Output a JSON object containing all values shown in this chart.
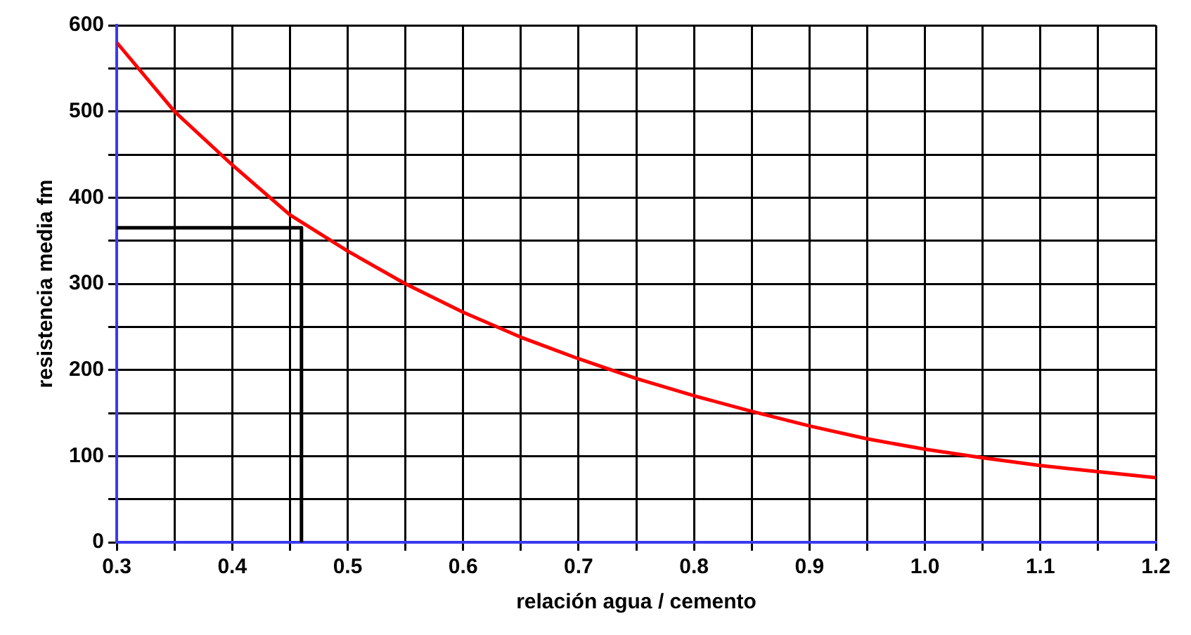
{
  "chart_data": {
    "type": "line",
    "xlabel": "relación agua / cemento",
    "ylabel": "resistencia media fm",
    "series": [
      {
        "color": "#ff0000",
        "x": [
          0.3,
          0.35,
          0.4,
          0.45,
          0.5,
          0.55,
          0.6,
          0.65,
          0.7,
          0.75,
          0.8,
          0.85,
          0.9,
          0.95,
          1.0,
          1.05,
          1.1,
          1.15,
          1.2
        ],
        "values": [
          580,
          500,
          438,
          380,
          338,
          300,
          267,
          238,
          213,
          190,
          170,
          152,
          135,
          120,
          108,
          98,
          89,
          82,
          75
        ]
      },
      {
        "color": "#000000",
        "x": [
          0.3,
          0.46,
          0.46
        ],
        "values": [
          365,
          365,
          0
        ]
      }
    ],
    "xlim": [
      0.3,
      1.2
    ],
    "xticks": [
      0.3,
      {
        "value": 0.35,
        "label": null
      },
      0.4,
      {
        "value": 0.45,
        "label": null
      },
      0.5,
      {
        "value": 0.55,
        "label": null
      },
      0.6,
      {
        "value": 0.65,
        "label": null
      },
      0.7,
      {
        "value": 0.75,
        "label": null
      },
      0.8,
      {
        "value": 0.85,
        "label": null
      },
      0.9,
      {
        "value": 0.95,
        "label": null
      },
      {
        "value": 1.0,
        "label": "1.0"
      },
      {
        "value": 1.05,
        "label": null
      },
      1.1,
      {
        "value": 1.15,
        "label": null
      },
      1.2
    ],
    "ylim": [
      0,
      600
    ],
    "yticks": [
      0,
      {
        "value": 50,
        "label": null
      },
      100,
      {
        "value": 150,
        "label": null
      },
      200,
      {
        "value": 250,
        "label": null
      },
      300,
      {
        "value": 350,
        "label": null
      },
      400,
      {
        "value": 450,
        "label": null
      },
      500,
      {
        "value": 550,
        "label": null
      },
      600
    ],
    "grid": true,
    "legend": false,
    "marker": "none",
    "line_style": "solid"
  }
}
